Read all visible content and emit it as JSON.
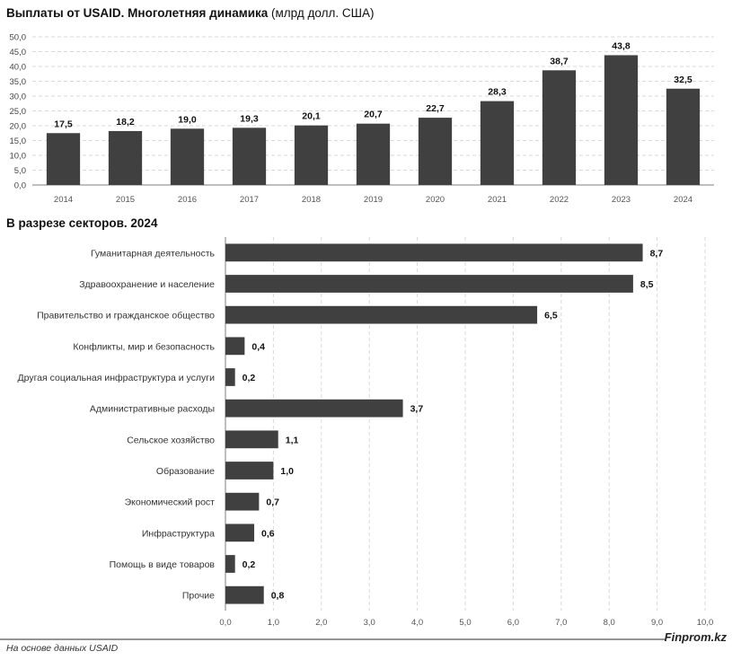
{
  "header": {
    "title1_main": "Выплаты от USAID. Многолетняя динамика",
    "title1_unit": "(млрд долл. США)",
    "title2": "В разрезе секторов. 2024"
  },
  "footer": {
    "source": "На основе данных USAID",
    "brand": "Finprom.kz"
  },
  "colors": {
    "bar": "#404040",
    "grid": "#d9d9d9",
    "axis": "#7f7f7f"
  },
  "chart_data": [
    {
      "type": "bar",
      "orientation": "vertical",
      "categories": [
        "2014",
        "2015",
        "2016",
        "2017",
        "2018",
        "2019",
        "2020",
        "2021",
        "2022",
        "2023",
        "2024"
      ],
      "values": [
        17.5,
        18.2,
        19.0,
        19.3,
        20.1,
        20.7,
        22.7,
        28.3,
        38.7,
        43.8,
        32.5
      ],
      "value_labels": [
        "17,5",
        "18,2",
        "19,0",
        "19,3",
        "20,1",
        "20,7",
        "22,7",
        "28,3",
        "38,7",
        "43,8",
        "32,5"
      ],
      "ylim": [
        0,
        50
      ],
      "yticks": [
        "0,0",
        "5,0",
        "10,0",
        "15,0",
        "20,0",
        "25,0",
        "30,0",
        "35,0",
        "40,0",
        "45,0",
        "50,0"
      ],
      "grid": true,
      "grid_style": "dashed"
    },
    {
      "type": "bar",
      "orientation": "horizontal",
      "categories": [
        "Гуманитарная деятельность",
        "Здравоохранение и население",
        "Правительство и гражданское общество",
        "Конфликты, мир и безопасность",
        "Другая социальная инфраструктура и услуги",
        "Административные расходы",
        "Сельское хозяйство",
        "Образование",
        "Экономический рост",
        "Инфраструктура",
        "Помощь в виде товаров",
        "Прочие"
      ],
      "values": [
        8.7,
        8.5,
        6.5,
        0.4,
        0.2,
        3.7,
        1.1,
        1.0,
        0.7,
        0.6,
        0.2,
        0.8
      ],
      "value_labels": [
        "8,7",
        "8,5",
        "6,5",
        "0,4",
        "0,2",
        "3,7",
        "1,1",
        "1,0",
        "0,7",
        "0,6",
        "0,2",
        "0,8"
      ],
      "xlim": [
        0,
        10
      ],
      "xticks": [
        "0,0",
        "1,0",
        "2,0",
        "3,0",
        "4,0",
        "5,0",
        "6,0",
        "7,0",
        "8,0",
        "9,0",
        "10,0"
      ],
      "grid": true,
      "grid_style": "dashed"
    }
  ]
}
